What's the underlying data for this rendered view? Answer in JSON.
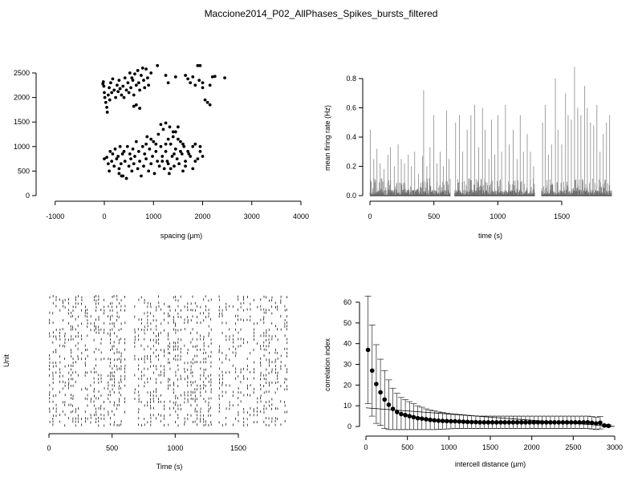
{
  "title": "Maccione2014_P02_AllPhases_Spikes_bursts_filtered",
  "chart_data": [
    {
      "type": "scatter",
      "xlabel": "spacing (µm)",
      "ylabel": "",
      "xlim": [
        -1000,
        4000
      ],
      "ylim": [
        0,
        2500
      ],
      "xticks": [
        "-1000",
        "0",
        "1000",
        "2000",
        "3000",
        "4000"
      ],
      "yticks": [
        "0",
        "500",
        "1000",
        "1500",
        "2000",
        "2500"
      ],
      "grid": false,
      "points": [
        [
          -30,
          2280
        ],
        [
          -20,
          2320
        ],
        [
          -10,
          2230
        ],
        [
          0,
          2100
        ],
        [
          10,
          2000
        ],
        [
          30,
          1900
        ],
        [
          50,
          1800
        ],
        [
          60,
          1700
        ],
        [
          80,
          2050
        ],
        [
          100,
          2200
        ],
        [
          110,
          1950
        ],
        [
          130,
          2300
        ],
        [
          150,
          2100
        ],
        [
          170,
          2380
        ],
        [
          200,
          2150
        ],
        [
          230,
          2000
        ],
        [
          260,
          2250
        ],
        [
          280,
          2120
        ],
        [
          300,
          2350
        ],
        [
          320,
          2180
        ],
        [
          350,
          2050
        ],
        [
          380,
          2230
        ],
        [
          400,
          2000
        ],
        [
          420,
          2400
        ],
        [
          450,
          2150
        ],
        [
          480,
          2300
        ],
        [
          500,
          2100
        ],
        [
          520,
          2500
        ],
        [
          540,
          2200
        ],
        [
          560,
          2400
        ],
        [
          580,
          2350
        ],
        [
          600,
          2050
        ],
        [
          620,
          2480
        ],
        [
          650,
          2250
        ],
        [
          680,
          2550
        ],
        [
          700,
          2300
        ],
        [
          720,
          2150
        ],
        [
          750,
          2450
        ],
        [
          780,
          2600
        ],
        [
          800,
          2350
        ],
        [
          820,
          2200
        ],
        [
          850,
          2580
        ],
        [
          880,
          2400
        ],
        [
          900,
          2250
        ],
        [
          950,
          2500
        ],
        [
          600,
          1820
        ],
        [
          650,
          1850
        ],
        [
          720,
          1780
        ],
        [
          1080,
          2650
        ],
        [
          1250,
          2450
        ],
        [
          1300,
          2300
        ],
        [
          1450,
          2420
        ],
        [
          1650,
          2450
        ],
        [
          1700,
          2380
        ],
        [
          1750,
          2300
        ],
        [
          1800,
          2420
        ],
        [
          1850,
          2250
        ],
        [
          1900,
          2650
        ],
        [
          1950,
          2650
        ],
        [
          1930,
          2350
        ],
        [
          2000,
          2300
        ],
        [
          2050,
          1950
        ],
        [
          2100,
          1900
        ],
        [
          2150,
          1850
        ],
        [
          2150,
          2250
        ],
        [
          2200,
          2420
        ],
        [
          2250,
          2430
        ],
        [
          2450,
          2400
        ],
        [
          2000,
          2200
        ],
        [
          0,
          750
        ],
        [
          50,
          780
        ],
        [
          80,
          650
        ],
        [
          100,
          500
        ],
        [
          120,
          900
        ],
        [
          150,
          700
        ],
        [
          170,
          850
        ],
        [
          200,
          600
        ],
        [
          220,
          950
        ],
        [
          250,
          750
        ],
        [
          280,
          800
        ],
        [
          300,
          550
        ],
        [
          320,
          1000
        ],
        [
          340,
          650
        ],
        [
          370,
          850
        ],
        [
          380,
          400
        ],
        [
          400,
          900
        ],
        [
          420,
          700
        ],
        [
          450,
          350
        ],
        [
          470,
          1000
        ],
        [
          500,
          600
        ],
        [
          520,
          850
        ],
        [
          540,
          750
        ],
        [
          560,
          500
        ],
        [
          580,
          950
        ],
        [
          600,
          650
        ],
        [
          620,
          800
        ],
        [
          650,
          1100
        ],
        [
          680,
          550
        ],
        [
          700,
          900
        ],
        [
          720,
          700
        ],
        [
          750,
          400
        ],
        [
          780,
          1000
        ],
        [
          800,
          600
        ],
        [
          820,
          850
        ],
        [
          850,
          750
        ],
        [
          870,
          1200
        ],
        [
          900,
          500
        ],
        [
          920,
          950
        ],
        [
          950,
          650
        ],
        [
          980,
          800
        ],
        [
          1000,
          1100
        ],
        [
          1020,
          450
        ],
        [
          1050,
          900
        ],
        [
          1080,
          700
        ],
        [
          1100,
          1250
        ],
        [
          1120,
          600
        ],
        [
          1150,
          1000
        ],
        [
          1180,
          800
        ],
        [
          1200,
          1350
        ],
        [
          1220,
          550
        ],
        [
          1250,
          900
        ],
        [
          1280,
          700
        ],
        [
          1300,
          1150
        ],
        [
          1320,
          450
        ],
        [
          1350,
          1050
        ],
        [
          1380,
          800
        ],
        [
          1400,
          1300
        ],
        [
          1420,
          600
        ],
        [
          1450,
          950
        ],
        [
          1480,
          750
        ],
        [
          1500,
          1400
        ],
        [
          1520,
          650
        ],
        [
          1550,
          1100
        ],
        [
          1580,
          850
        ],
        [
          1600,
          500
        ],
        [
          1620,
          1000
        ],
        [
          1650,
          700
        ],
        [
          1700,
          900
        ],
        [
          1750,
          800
        ],
        [
          1800,
          1000
        ],
        [
          1850,
          1050
        ],
        [
          1900,
          750
        ],
        [
          1950,
          900
        ],
        [
          2000,
          800
        ],
        [
          1150,
          1450
        ],
        [
          1250,
          1480
        ],
        [
          1330,
          1400
        ],
        [
          1400,
          1200
        ],
        [
          1450,
          1300
        ],
        [
          1500,
          1150
        ],
        [
          1550,
          900
        ],
        [
          1600,
          1050
        ],
        [
          1650,
          600
        ],
        [
          1720,
          850
        ],
        [
          1800,
          550
        ],
        [
          1850,
          700
        ],
        [
          1950,
          1000
        ],
        [
          1250,
          1050
        ],
        [
          1300,
          650
        ],
        [
          1350,
          550
        ],
        [
          1420,
          850
        ],
        [
          1180,
          700
        ],
        [
          1050,
          1050
        ],
        [
          950,
          1150
        ],
        [
          850,
          1050
        ],
        [
          350,
          400
        ],
        [
          300,
          450
        ]
      ]
    },
    {
      "type": "bar",
      "xlabel": "time (s)",
      "ylabel": "mean firing rate (Hz)",
      "xlim": [
        0,
        1890
      ],
      "ylim": [
        0,
        0.8
      ],
      "xticks": [
        "0",
        "500",
        "1000",
        "1500"
      ],
      "yticks": [
        "0.0",
        "0.2",
        "0.4",
        "0.6",
        "0.8"
      ],
      "grid": false,
      "gaps": [
        [
          630,
          660
        ],
        [
          1290,
          1340
        ]
      ],
      "peaks": [
        [
          2,
          0.45
        ],
        [
          30,
          0.25
        ],
        [
          55,
          0.32
        ],
        [
          80,
          0.22
        ],
        [
          110,
          0.18
        ],
        [
          140,
          0.28
        ],
        [
          160,
          0.33
        ],
        [
          190,
          0.2
        ],
        [
          220,
          0.35
        ],
        [
          245,
          0.25
        ],
        [
          270,
          0.22
        ],
        [
          300,
          0.28
        ],
        [
          325,
          0.2
        ],
        [
          350,
          0.3
        ],
        [
          380,
          0.15
        ],
        [
          410,
          0.27
        ],
        [
          420,
          0.72
        ],
        [
          445,
          0.2
        ],
        [
          470,
          0.33
        ],
        [
          500,
          0.55
        ],
        [
          525,
          0.22
        ],
        [
          550,
          0.3
        ],
        [
          575,
          0.2
        ],
        [
          600,
          0.58
        ],
        [
          618,
          0.25
        ],
        [
          670,
          0.5
        ],
        [
          700,
          0.55
        ],
        [
          725,
          0.3
        ],
        [
          760,
          0.45
        ],
        [
          790,
          0.55
        ],
        [
          820,
          0.62
        ],
        [
          850,
          0.33
        ],
        [
          880,
          0.6
        ],
        [
          900,
          0.45
        ],
        [
          930,
          0.25
        ],
        [
          950,
          0.52
        ],
        [
          975,
          0.28
        ],
        [
          1000,
          0.55
        ],
        [
          1030,
          0.3
        ],
        [
          1060,
          0.62
        ],
        [
          1090,
          0.35
        ],
        [
          1120,
          0.45
        ],
        [
          1150,
          0.25
        ],
        [
          1175,
          0.55
        ],
        [
          1200,
          0.3
        ],
        [
          1230,
          0.42
        ],
        [
          1255,
          0.3
        ],
        [
          1280,
          0.2
        ],
        [
          1350,
          0.5
        ],
        [
          1370,
          0.62
        ],
        [
          1395,
          0.28
        ],
        [
          1420,
          0.35
        ],
        [
          1450,
          0.8
        ],
        [
          1470,
          0.45
        ],
        [
          1500,
          0.35
        ],
        [
          1530,
          0.7
        ],
        [
          1550,
          0.55
        ],
        [
          1575,
          0.52
        ],
        [
          1600,
          0.88
        ],
        [
          1625,
          0.6
        ],
        [
          1650,
          0.55
        ],
        [
          1680,
          0.75
        ],
        [
          1700,
          0.6
        ],
        [
          1725,
          0.5
        ],
        [
          1750,
          0.48
        ],
        [
          1775,
          0.62
        ],
        [
          1800,
          0.3
        ],
        [
          1825,
          0.42
        ],
        [
          1850,
          0.5
        ],
        [
          1875,
          0.55
        ]
      ]
    },
    {
      "type": "scatter",
      "subtype": "raster",
      "xlabel": "Time (s)",
      "ylabel": "Unit",
      "xlim": [
        0,
        1890
      ],
      "xticks": [
        "0",
        "500",
        "1000",
        "1500"
      ],
      "grid": false,
      "gaps": [
        [
          630,
          660
        ],
        [
          1290,
          1340
        ]
      ],
      "units": 40
    },
    {
      "type": "line",
      "subtype": "errorbar",
      "xlabel": "intercell distance (µm)",
      "ylabel": "correlation index",
      "xlim": [
        0,
        3000
      ],
      "ylim": [
        0,
        60
      ],
      "xticks": [
        "0",
        "500",
        "1000",
        "1500",
        "2000",
        "2500",
        "3000"
      ],
      "yticks": [
        "0",
        "10",
        "20",
        "30",
        "40",
        "50",
        "60"
      ],
      "grid": false,
      "x": [
        25,
        75,
        125,
        175,
        225,
        275,
        325,
        375,
        425,
        475,
        525,
        575,
        625,
        675,
        725,
        775,
        825,
        875,
        925,
        975,
        1025,
        1075,
        1125,
        1175,
        1225,
        1275,
        1325,
        1375,
        1425,
        1475,
        1525,
        1575,
        1625,
        1675,
        1725,
        1775,
        1825,
        1875,
        1925,
        1975,
        2025,
        2075,
        2125,
        2175,
        2225,
        2275,
        2325,
        2375,
        2425,
        2475,
        2525,
        2575,
        2625,
        2675,
        2725,
        2775,
        2825,
        2875,
        2925
      ],
      "y": [
        37,
        27,
        20.5,
        16.5,
        13,
        10.5,
        8.5,
        7,
        6,
        5.5,
        5,
        4.5,
        4,
        3.8,
        3.5,
        3.2,
        3,
        2.8,
        2.7,
        2.6,
        2.5,
        2.5,
        2.4,
        2.3,
        2.2,
        2.1,
        2.1,
        2,
        2,
        2,
        2,
        2,
        2,
        2,
        2,
        2,
        2,
        2,
        2,
        2,
        2,
        2,
        2,
        2,
        2,
        2,
        2,
        2,
        2,
        2,
        2,
        2,
        2,
        2,
        1.8,
        1.5,
        1.8,
        0.5,
        0.3
      ],
      "err": [
        26,
        22,
        19,
        16,
        14,
        12,
        10,
        9,
        8,
        7.5,
        7,
        6.5,
        6,
        5.5,
        5,
        4.8,
        4.5,
        4.2,
        4,
        3.8,
        3.6,
        3.5,
        3.4,
        3.3,
        3.2,
        3.1,
        3,
        3,
        3,
        3,
        3,
        3,
        3,
        3,
        3,
        3,
        3,
        3,
        3,
        3,
        3,
        3,
        3,
        3,
        3,
        3,
        3,
        3,
        3,
        3,
        3,
        3,
        3,
        3,
        3,
        3,
        3,
        0.5,
        0.5
      ],
      "fit": [
        [
          0,
          9
        ],
        [
          3000,
          0
        ]
      ]
    }
  ]
}
